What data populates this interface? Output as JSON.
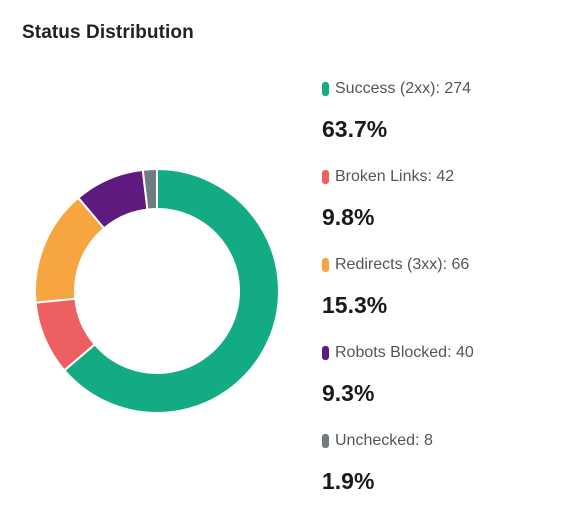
{
  "card": {
    "title": "Status Distribution"
  },
  "chart_data": {
    "type": "pie",
    "style": "donut",
    "categories": [
      "Success (2xx)",
      "Broken Links",
      "Redirects (3xx)",
      "Robots Blocked",
      "Unchecked"
    ],
    "values": [
      274,
      42,
      66,
      40,
      8
    ],
    "percentages": [
      "63.7%",
      "9.8%",
      "15.3%",
      "9.3%",
      "1.9%"
    ],
    "legend_labels": [
      "Success (2xx): 274",
      "Broken Links: 42",
      "Redirects (3xx): 66",
      "Robots Blocked: 40",
      "Unchecked: 8"
    ],
    "colors": [
      "#13ab84",
      "#ee5f62",
      "#f7a541",
      "#5f1a7f",
      "#707a80"
    ],
    "legend": "right"
  }
}
